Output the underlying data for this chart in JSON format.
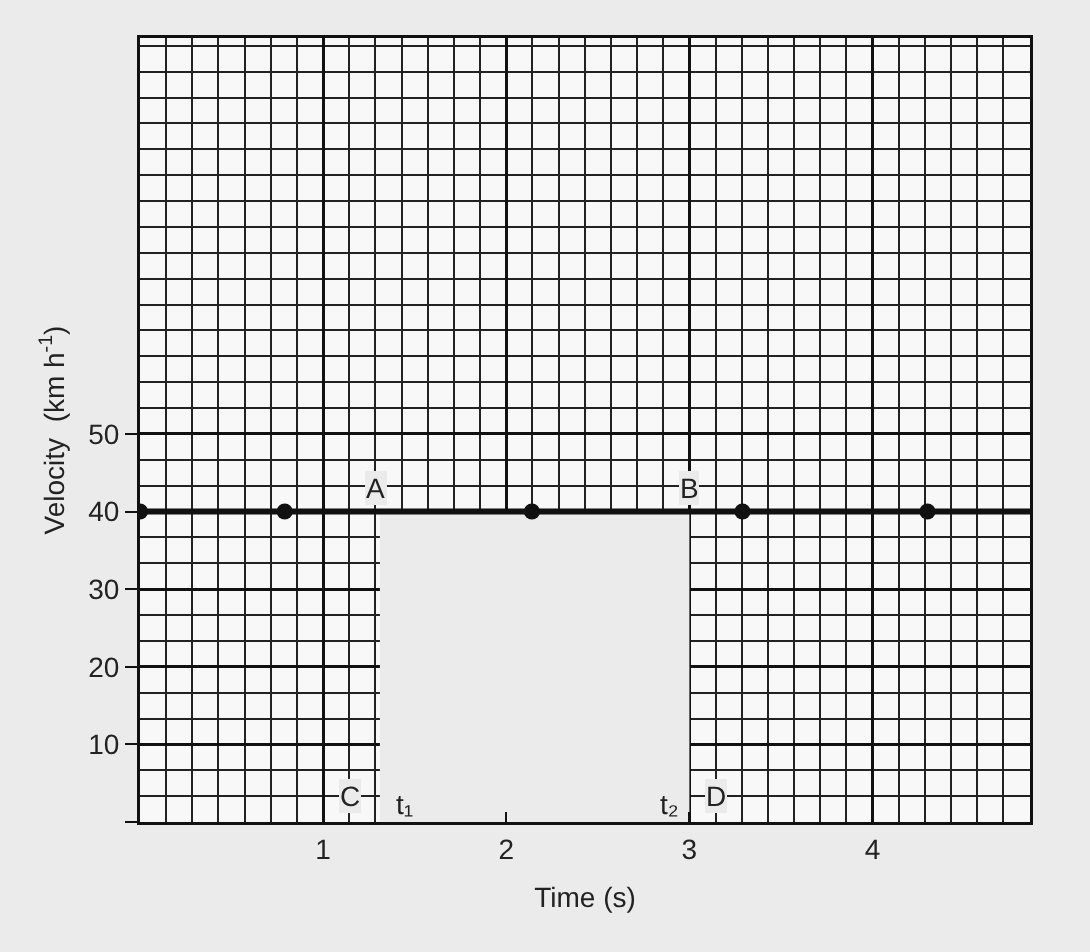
{
  "chart_data": {
    "type": "scatter",
    "xlabel": "Time (s)",
    "ylabel": "Velocity  (km h$^{-1}$)",
    "xlim": [
      0,
      4.86
    ],
    "xticks": [
      {
        "value": 0,
        "label": null
      },
      1,
      2,
      3,
      4
    ],
    "ylim": [
      0,
      101
    ],
    "yticks": [
      {
        "value": 0,
        "label": null
      },
      10,
      20,
      30,
      40,
      50
    ],
    "grid": true,
    "series": [
      {
        "type": "area",
        "color": "#ebebeb",
        "x": [
          1.31,
          3
        ],
        "values": [
          40,
          40
        ]
      },
      {
        "color": "#111111",
        "x": [
          0,
          0.79,
          2.14,
          3.29,
          4.3
        ],
        "values": [
          40,
          40,
          40,
          40,
          40
        ]
      }
    ],
    "ref_lines": [
      {
        "axis": "y",
        "value": 40,
        "color": "#111111"
      }
    ],
    "annotations": [
      {
        "text": "A",
        "x": 1.29,
        "y": 43
      },
      {
        "text": "B",
        "x": 3.0,
        "y": 43
      },
      {
        "text": "C",
        "x": 1.15,
        "y": 3.4
      },
      {
        "text": "D",
        "x": 3.15,
        "y": 3.4
      },
      {
        "text": "t₁",
        "x": 1.45,
        "y": 2.3
      },
      {
        "text": "t₂",
        "x": 2.89,
        "y": 2.3
      }
    ]
  }
}
